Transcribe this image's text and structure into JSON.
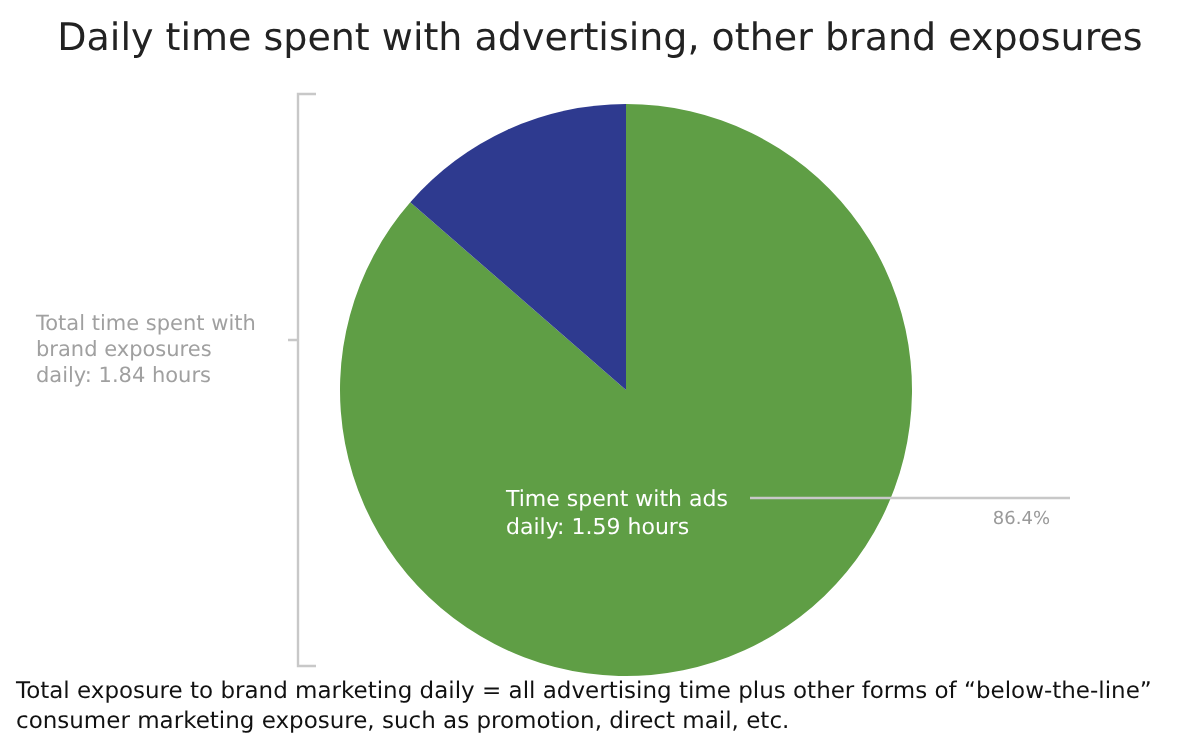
{
  "chart_data": {
    "type": "pie",
    "title": "Daily time spent with advertising, other brand exposures",
    "categories": [
      "Time spent with ads daily: 1.59 hours",
      null
    ],
    "values": [
      86.4,
      13.6
    ],
    "value_labels": [
      "86.4%",
      null
    ],
    "colors": [
      "#5f9e45",
      "#2e3a8f"
    ],
    "annotations": [
      "Total time spent with brand exposures daily: 1.84 hours",
      "Total exposure to brand marketing daily = all advertising time plus other forms of “below-the-line” consumer marketing exposure, such as promotion, direct mail, etc."
    ],
    "legend": false
  }
}
